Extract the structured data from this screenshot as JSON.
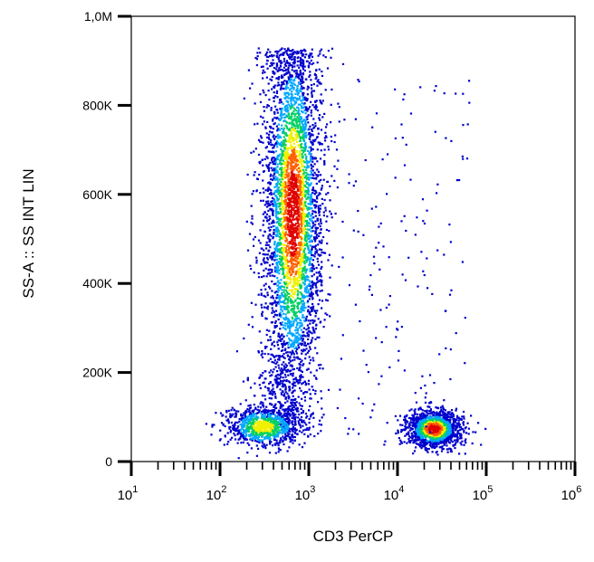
{
  "chart_data": {
    "type": "scatter",
    "subtype": "flow-cytometry-density-dot-plot",
    "xlabel": "CD3 PerCP",
    "ylabel": "SS-A :: SS INT LIN",
    "x_scale": "log",
    "xlim": [
      10,
      1000000
    ],
    "ylim": [
      0,
      1000000
    ],
    "x_ticks": [
      {
        "value": 10,
        "base": "10",
        "exp": "1"
      },
      {
        "value": 100,
        "base": "10",
        "exp": "2"
      },
      {
        "value": 1000,
        "base": "10",
        "exp": "3"
      },
      {
        "value": 10000,
        "base": "10",
        "exp": "4"
      },
      {
        "value": 100000,
        "base": "10",
        "exp": "5"
      },
      {
        "value": 1000000,
        "base": "10",
        "exp": "6"
      }
    ],
    "y_ticks": [
      {
        "value": 0,
        "label": "0"
      },
      {
        "value": 200000,
        "label": "200K"
      },
      {
        "value": 400000,
        "label": "400K"
      },
      {
        "value": 600000,
        "label": "600K"
      },
      {
        "value": 800000,
        "label": "800K"
      },
      {
        "value": 1000000,
        "label": "1,0M"
      }
    ],
    "colormap": [
      "#0000cc",
      "#00a8ff",
      "#00d060",
      "#f0f000",
      "#ff6000",
      "#e00000"
    ],
    "populations": [
      {
        "shape": "vertical-band",
        "x_min": 200,
        "x_max": 2000,
        "y_min": 70000,
        "y_max": 930000,
        "peak_x": 650,
        "peak_y": 560000
      },
      {
        "shape": "cluster",
        "x_min": 10000,
        "x_max": 60000,
        "y_min": 30000,
        "y_max": 150000,
        "peak_x": 25000,
        "peak_y": 75000
      },
      {
        "shape": "cluster",
        "x_min": 100,
        "x_max": 600,
        "y_min": 40000,
        "y_max": 130000,
        "peak_x": 300,
        "peak_y": 80000
      }
    ],
    "grid": false
  }
}
